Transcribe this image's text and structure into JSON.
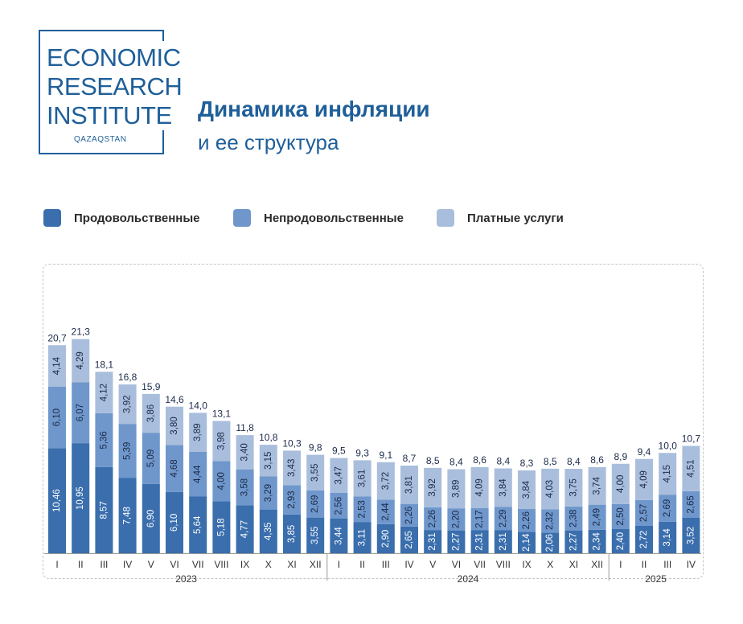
{
  "logo": {
    "line1": "ECONOMIC",
    "line2": "RESEARCH",
    "line3": "INSTITUTE",
    "sub": "QAZAQSTAN"
  },
  "header": {
    "title": "Динамика инфляции",
    "subtitle": "и ее структура"
  },
  "colors": {
    "food": "#3a6ead",
    "nonfood": "#6f97cb",
    "services": "#a9bedc",
    "text": "#1b2a4a"
  },
  "chart_data": {
    "type": "bar",
    "stacked": true,
    "legend_position": "top",
    "categories": [
      "I",
      "II",
      "III",
      "IV",
      "V",
      "VI",
      "VII",
      "VIII",
      "IX",
      "X",
      "XI",
      "XII",
      "I",
      "II",
      "III",
      "IV",
      "V",
      "VI",
      "VII",
      "VIII",
      "IX",
      "X",
      "XI",
      "XII",
      "I",
      "II",
      "III",
      "IV"
    ],
    "years": [
      {
        "label": "2023",
        "start": 0,
        "end": 11
      },
      {
        "label": "2024",
        "start": 12,
        "end": 23
      },
      {
        "label": "2025",
        "start": 24,
        "end": 27
      }
    ],
    "series": [
      {
        "name": "Продовольственные",
        "values": [
          "10,46",
          "10,95",
          "8,57",
          "7,48",
          "6,90",
          "6,10",
          "5,64",
          "5,18",
          "4,77",
          "4,35",
          "3,85",
          "3,55",
          "3,44",
          "3,11",
          "2,90",
          "2,65",
          "2,31",
          "2,27",
          "2,31",
          "2,31",
          "2,14",
          "2,06",
          "2,27",
          "2,34",
          "2,40",
          "2,72",
          "3,14",
          "3,52"
        ]
      },
      {
        "name": "Непродовольственные",
        "values": [
          "6,10",
          "6,07",
          "5,36",
          "5,39",
          "5,09",
          "4,68",
          "4,44",
          "4,00",
          "3,58",
          "3,29",
          "2,93",
          "2,69",
          "2,56",
          "2,53",
          "2,44",
          "2,26",
          "2,26",
          "2,20",
          "2,17",
          "2,29",
          "2,26",
          "2,32",
          "2,38",
          "2,49",
          "2,50",
          "2,57",
          "2,69",
          "2,65"
        ]
      },
      {
        "name": "Платные услуги",
        "values": [
          "4,14",
          "4,29",
          "4,12",
          "3,92",
          "3,86",
          "3,80",
          "3,89",
          "3,98",
          "3,40",
          "3,15",
          "3,43",
          "3,55",
          "3,47",
          "3,61",
          "3,72",
          "3,81",
          "3,92",
          "3,89",
          "4,09",
          "3,84",
          "3,84",
          "4,03",
          "3,75",
          "3,74",
          "4,00",
          "4,09",
          "4,15",
          "4,51"
        ]
      }
    ],
    "totals": [
      "20,7",
      "21,3",
      "18,1",
      "16,8",
      "15,9",
      "14,6",
      "14,0",
      "13,1",
      "11,8",
      "10,8",
      "10,3",
      "9,8",
      "9,5",
      "9,3",
      "9,1",
      "8,7",
      "8,5",
      "8,4",
      "8,6",
      "8,4",
      "8,3",
      "8,5",
      "8,4",
      "8,6",
      "8,9",
      "9,4",
      "10,0",
      "10,7"
    ]
  }
}
